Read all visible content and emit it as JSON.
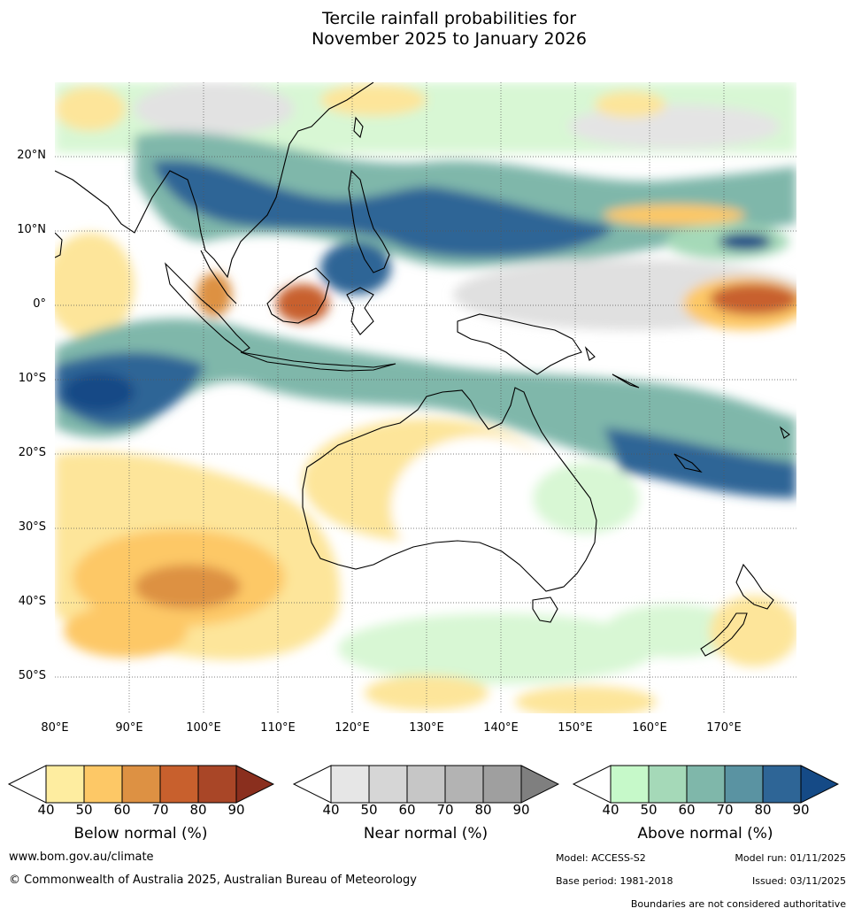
{
  "title": {
    "line1": "Tercile rainfall probabilities for",
    "line2": "November 2025 to January 2026"
  },
  "axes": {
    "lat_labels": [
      "20°N",
      "10°N",
      "0°",
      "10°S",
      "20°S",
      "30°S",
      "40°S",
      "50°S"
    ],
    "lon_labels": [
      "80°E",
      "90°E",
      "100°E",
      "110°E",
      "120°E",
      "130°E",
      "140°E",
      "150°E",
      "160°E",
      "170°E"
    ]
  },
  "colorbars": [
    {
      "title": "Below normal (%)",
      "ticks": [
        "40",
        "50",
        "60",
        "70",
        "80",
        "90"
      ],
      "colors": [
        "#ffffff",
        "#feeda0",
        "#fdc866",
        "#dd9143",
        "#c8602d",
        "#a94627",
        "#8a2f1e"
      ]
    },
    {
      "title": "Near normal (%)",
      "ticks": [
        "40",
        "50",
        "60",
        "70",
        "80",
        "90"
      ],
      "colors": [
        "#ffffff",
        "#e6e6e6",
        "#d6d6d6",
        "#c6c6c6",
        "#b3b3b3",
        "#9f9f9f",
        "#7f7f7f"
      ]
    },
    {
      "title": "Above normal (%)",
      "ticks": [
        "40",
        "50",
        "60",
        "70",
        "80",
        "90"
      ],
      "colors": [
        "#ffffff",
        "#c6f9c9",
        "#a5d9b8",
        "#7fb7aa",
        "#5a93a2",
        "#2e6596",
        "#154a86"
      ]
    }
  ],
  "footer": {
    "website": "www.bom.gov.au/climate",
    "copyright": "© Commonwealth of Australia 2025, Australian Bureau of Meteorology",
    "model": "Model: ACCESS-S2",
    "model_run": "Model run: 01/11/2025",
    "base_period": "Base period: 1981-2018",
    "issued": "Issued: 03/11/2025",
    "boundaries": "Boundaries are not considered authoritative"
  }
}
